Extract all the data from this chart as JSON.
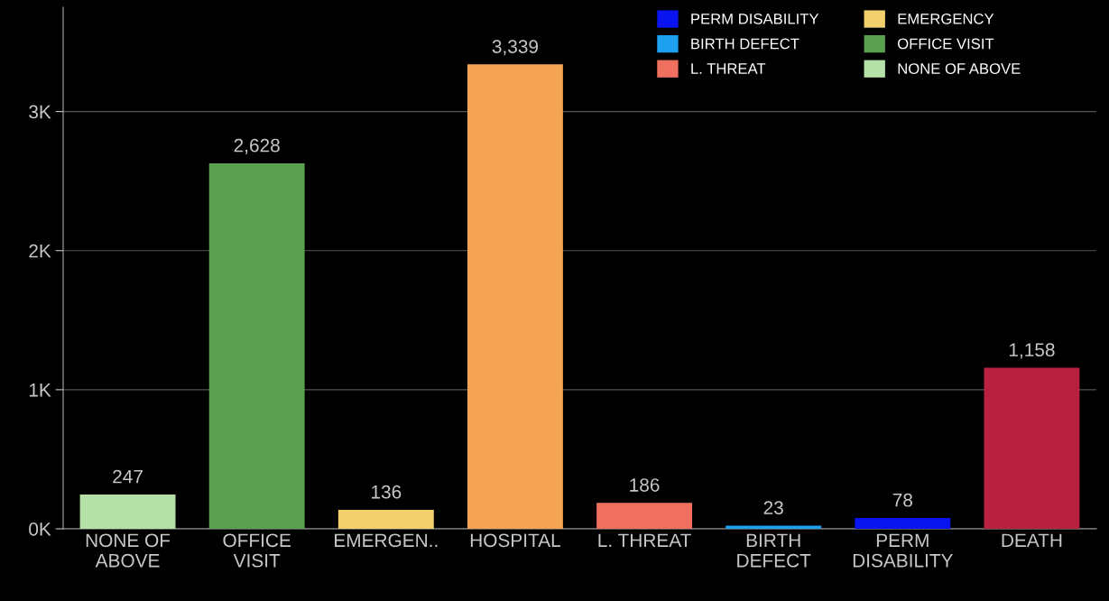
{
  "chart_data": {
    "type": "bar",
    "categories": [
      "NONE OF\nABOVE",
      "OFFICE\nVISIT",
      "EMERGEN..",
      "HOSPITAL",
      "L. THREAT",
      "BIRTH\nDEFECT",
      "PERM\nDISABILITY",
      "DEATH"
    ],
    "series": [
      {
        "name": "PERM DISABILITY",
        "color": "#0a14f0",
        "values": [
          null,
          null,
          null,
          null,
          null,
          null,
          78,
          null
        ],
        "value_labels": [
          null,
          null,
          null,
          null,
          null,
          null,
          "78",
          null
        ]
      },
      {
        "name": "BIRTH DEFECT",
        "color": "#1ea0f0",
        "values": [
          null,
          null,
          null,
          null,
          null,
          23,
          null,
          null
        ],
        "value_labels": [
          null,
          null,
          null,
          null,
          null,
          "23",
          null,
          null
        ]
      },
      {
        "name": "L. THREAT",
        "color": "#f07060",
        "values": [
          null,
          null,
          null,
          null,
          186,
          null,
          null,
          null
        ],
        "value_labels": [
          null,
          null,
          null,
          null,
          "186",
          null,
          null,
          null
        ]
      },
      {
        "name": "EMERGENCY",
        "color": "#f2d06b",
        "values": [
          null,
          null,
          136,
          null,
          null,
          null,
          null,
          null
        ],
        "value_labels": [
          null,
          null,
          "136",
          null,
          null,
          null,
          null,
          null
        ]
      },
      {
        "name": "OFFICE VISIT",
        "color": "#5aa050",
        "values": [
          null,
          2628,
          null,
          null,
          null,
          null,
          null,
          null
        ],
        "value_labels": [
          null,
          "2,628",
          null,
          null,
          null,
          null,
          null,
          null
        ]
      },
      {
        "name": "NONE OF ABOVE",
        "color": "#b5e0a8",
        "values": [
          247,
          null,
          null,
          null,
          null,
          null,
          null,
          null
        ],
        "value_labels": [
          "247",
          null,
          null,
          null,
          null,
          null,
          null,
          null
        ]
      },
      {
        "color": "#f5a453",
        "values": [
          null,
          null,
          null,
          3339,
          null,
          null,
          null,
          null
        ],
        "value_labels": [
          null,
          null,
          null,
          "3,339",
          null,
          null,
          null,
          null
        ]
      },
      {
        "color": "#b82040",
        "values": [
          null,
          null,
          null,
          null,
          null,
          null,
          null,
          1158
        ],
        "value_labels": [
          null,
          null,
          null,
          null,
          null,
          null,
          null,
          "1,158"
        ]
      }
    ],
    "ylim": [
      0,
      3750
    ],
    "yticks": [
      {
        "value": 0,
        "label": "0K"
      },
      {
        "value": 1000,
        "label": "1K"
      },
      {
        "value": 2000,
        "label": "2K"
      },
      {
        "value": 3000,
        "label": "3K"
      }
    ],
    "grid": "y",
    "legend": "top right"
  }
}
